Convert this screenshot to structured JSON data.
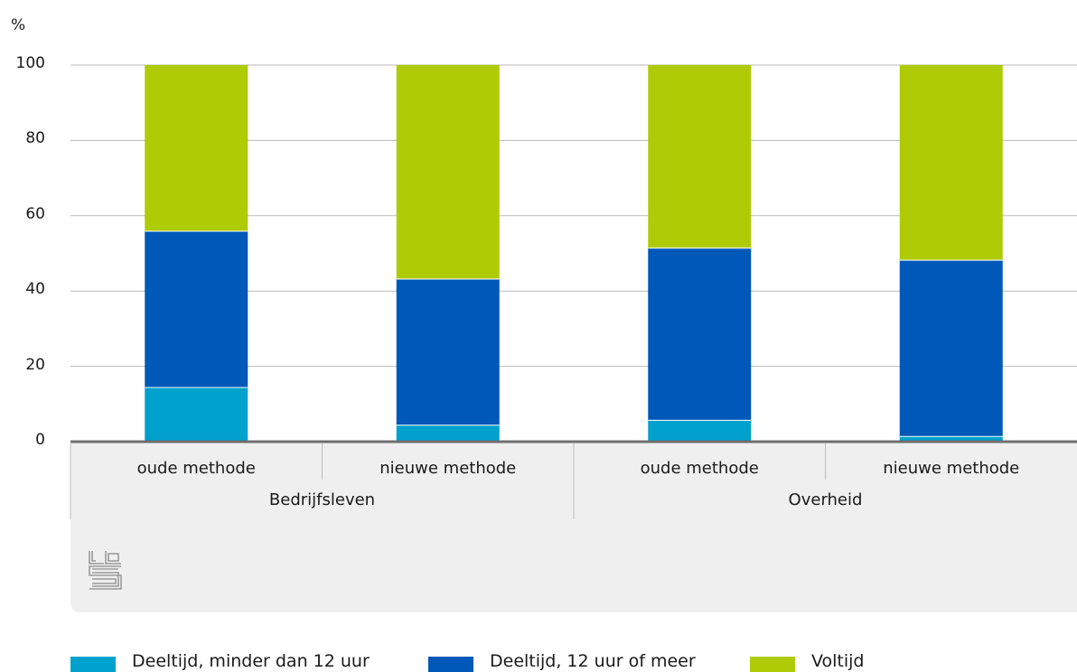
{
  "chart_data": {
    "type": "bar",
    "stacked": true,
    "unit_label": "%",
    "ylim": [
      0,
      100
    ],
    "yticks": [
      0,
      20,
      40,
      60,
      80,
      100
    ],
    "grid": true,
    "legend_position": "bottom-left",
    "groups": [
      {
        "name": "Bedrijfsleven",
        "categories": [
          "oude methode",
          "nieuwe methode"
        ]
      },
      {
        "name": "Overheid",
        "categories": [
          "oude methode",
          "nieuwe methode"
        ]
      }
    ],
    "categories": [
      "oude methode",
      "nieuwe methode",
      "oude methode",
      "nieuwe methode"
    ],
    "series": [
      {
        "name": "Deeltijd, minder dan 12 uur",
        "color": "#00a1cd",
        "values": [
          14.5,
          4.5,
          5.8,
          1.5
        ]
      },
      {
        "name": "Deeltijd, 12 uur of meer",
        "color": "#0058b8",
        "values": [
          41.5,
          38.8,
          45.7,
          46.8
        ]
      },
      {
        "name": "Voltijd",
        "color": "#afcb05",
        "values": [
          44,
          56.7,
          48.5,
          51.7
        ]
      }
    ]
  },
  "branding": {
    "logo_icon": "cbs-logo-icon"
  }
}
